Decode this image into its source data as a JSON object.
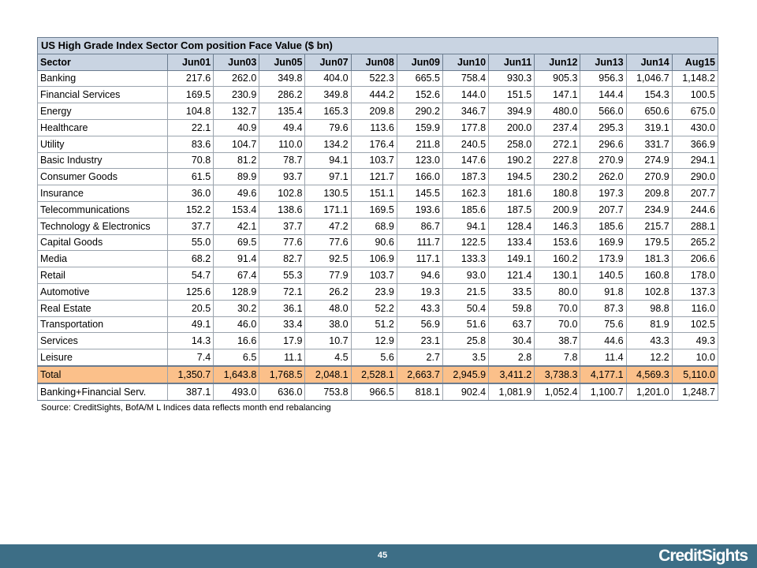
{
  "table": {
    "title": "US High Grade Index Sector Com position Face Value ($ bn)",
    "headers": [
      "Sector",
      "Jun01",
      "Jun03",
      "Jun05",
      "Jun07",
      "Jun08",
      "Jun09",
      "Jun10",
      "Jun11",
      "Jun12",
      "Jun13",
      "Jun14",
      "Aug15"
    ],
    "rows": [
      [
        "Banking",
        "217.6",
        "262.0",
        "349.8",
        "404.0",
        "522.3",
        "665.5",
        "758.4",
        "930.3",
        "905.3",
        "956.3",
        "1,046.7",
        "1,148.2"
      ],
      [
        "Financial Services",
        "169.5",
        "230.9",
        "286.2",
        "349.8",
        "444.2",
        "152.6",
        "144.0",
        "151.5",
        "147.1",
        "144.4",
        "154.3",
        "100.5"
      ],
      [
        "Energy",
        "104.8",
        "132.7",
        "135.4",
        "165.3",
        "209.8",
        "290.2",
        "346.7",
        "394.9",
        "480.0",
        "566.0",
        "650.6",
        "675.0"
      ],
      [
        "Healthcare",
        "22.1",
        "40.9",
        "49.4",
        "79.6",
        "113.6",
        "159.9",
        "177.8",
        "200.0",
        "237.4",
        "295.3",
        "319.1",
        "430.0"
      ],
      [
        "Utility",
        "83.6",
        "104.7",
        "110.0",
        "134.2",
        "176.4",
        "211.8",
        "240.5",
        "258.0",
        "272.1",
        "296.6",
        "331.7",
        "366.9"
      ],
      [
        "Basic Industry",
        "70.8",
        "81.2",
        "78.7",
        "94.1",
        "103.7",
        "123.0",
        "147.6",
        "190.2",
        "227.8",
        "270.9",
        "274.9",
        "294.1"
      ],
      [
        "Consumer Goods",
        "61.5",
        "89.9",
        "93.7",
        "97.1",
        "121.7",
        "166.0",
        "187.3",
        "194.5",
        "230.2",
        "262.0",
        "270.9",
        "290.0"
      ],
      [
        "Insurance",
        "36.0",
        "49.6",
        "102.8",
        "130.5",
        "151.1",
        "145.5",
        "162.3",
        "181.6",
        "180.8",
        "197.3",
        "209.8",
        "207.7"
      ],
      [
        "Telecommunications",
        "152.2",
        "153.4",
        "138.6",
        "171.1",
        "169.5",
        "193.6",
        "185.6",
        "187.5",
        "200.9",
        "207.7",
        "234.9",
        "244.6"
      ],
      [
        "Technology & Electronics",
        "37.7",
        "42.1",
        "37.7",
        "47.2",
        "68.9",
        "86.7",
        "94.1",
        "128.4",
        "146.3",
        "185.6",
        "215.7",
        "288.1"
      ],
      [
        "Capital Goods",
        "55.0",
        "69.5",
        "77.6",
        "77.6",
        "90.6",
        "111.7",
        "122.5",
        "133.4",
        "153.6",
        "169.9",
        "179.5",
        "265.2"
      ],
      [
        "Media",
        "68.2",
        "91.4",
        "82.7",
        "92.5",
        "106.9",
        "117.1",
        "133.3",
        "149.1",
        "160.2",
        "173.9",
        "181.3",
        "206.6"
      ],
      [
        "Retail",
        "54.7",
        "67.4",
        "55.3",
        "77.9",
        "103.7",
        "94.6",
        "93.0",
        "121.4",
        "130.1",
        "140.5",
        "160.8",
        "178.0"
      ],
      [
        "Automotive",
        "125.6",
        "128.9",
        "72.1",
        "26.2",
        "23.9",
        "19.3",
        "21.5",
        "33.5",
        "80.0",
        "91.8",
        "102.8",
        "137.3"
      ],
      [
        "Real Estate",
        "20.5",
        "30.2",
        "36.1",
        "48.0",
        "52.2",
        "43.3",
        "50.4",
        "59.8",
        "70.0",
        "87.3",
        "98.8",
        "116.0"
      ],
      [
        "Transportation",
        "49.1",
        "46.0",
        "33.4",
        "38.0",
        "51.2",
        "56.9",
        "51.6",
        "63.7",
        "70.0",
        "75.6",
        "81.9",
        "102.5"
      ],
      [
        "Services",
        "14.3",
        "16.6",
        "17.9",
        "10.7",
        "12.9",
        "23.1",
        "25.8",
        "30.4",
        "38.7",
        "44.6",
        "43.3",
        "49.3"
      ],
      [
        "Leisure",
        "7.4",
        "6.5",
        "11.1",
        "4.5",
        "5.6",
        "2.7",
        "3.5",
        "2.8",
        "7.8",
        "11.4",
        "12.2",
        "10.0"
      ]
    ],
    "total": [
      "Total",
      "1,350.7",
      "1,643.8",
      "1,768.5",
      "2,048.1",
      "2,528.1",
      "2,663.7",
      "2,945.9",
      "3,411.2",
      "3,738.3",
      "4,177.1",
      "4,569.3",
      "5,110.0"
    ],
    "banking_financial": [
      "Banking+Financial Serv.",
      "387.1",
      "493.0",
      "636.0",
      "753.8",
      "966.5",
      "818.1",
      "902.4",
      "1,081.9",
      "1,052.4",
      "1,100.7",
      "1,201.0",
      "1,248.7"
    ]
  },
  "source_note": "Source: CreditSights, BofA/M L Indices    data reflects month end rebalancing",
  "footer": {
    "page_number": "45",
    "brand": "CreditSights"
  },
  "colors": {
    "header_bg": "#c9d4e2",
    "total_bg": "#fbc08a",
    "footer_bg": "#3d6e86"
  }
}
